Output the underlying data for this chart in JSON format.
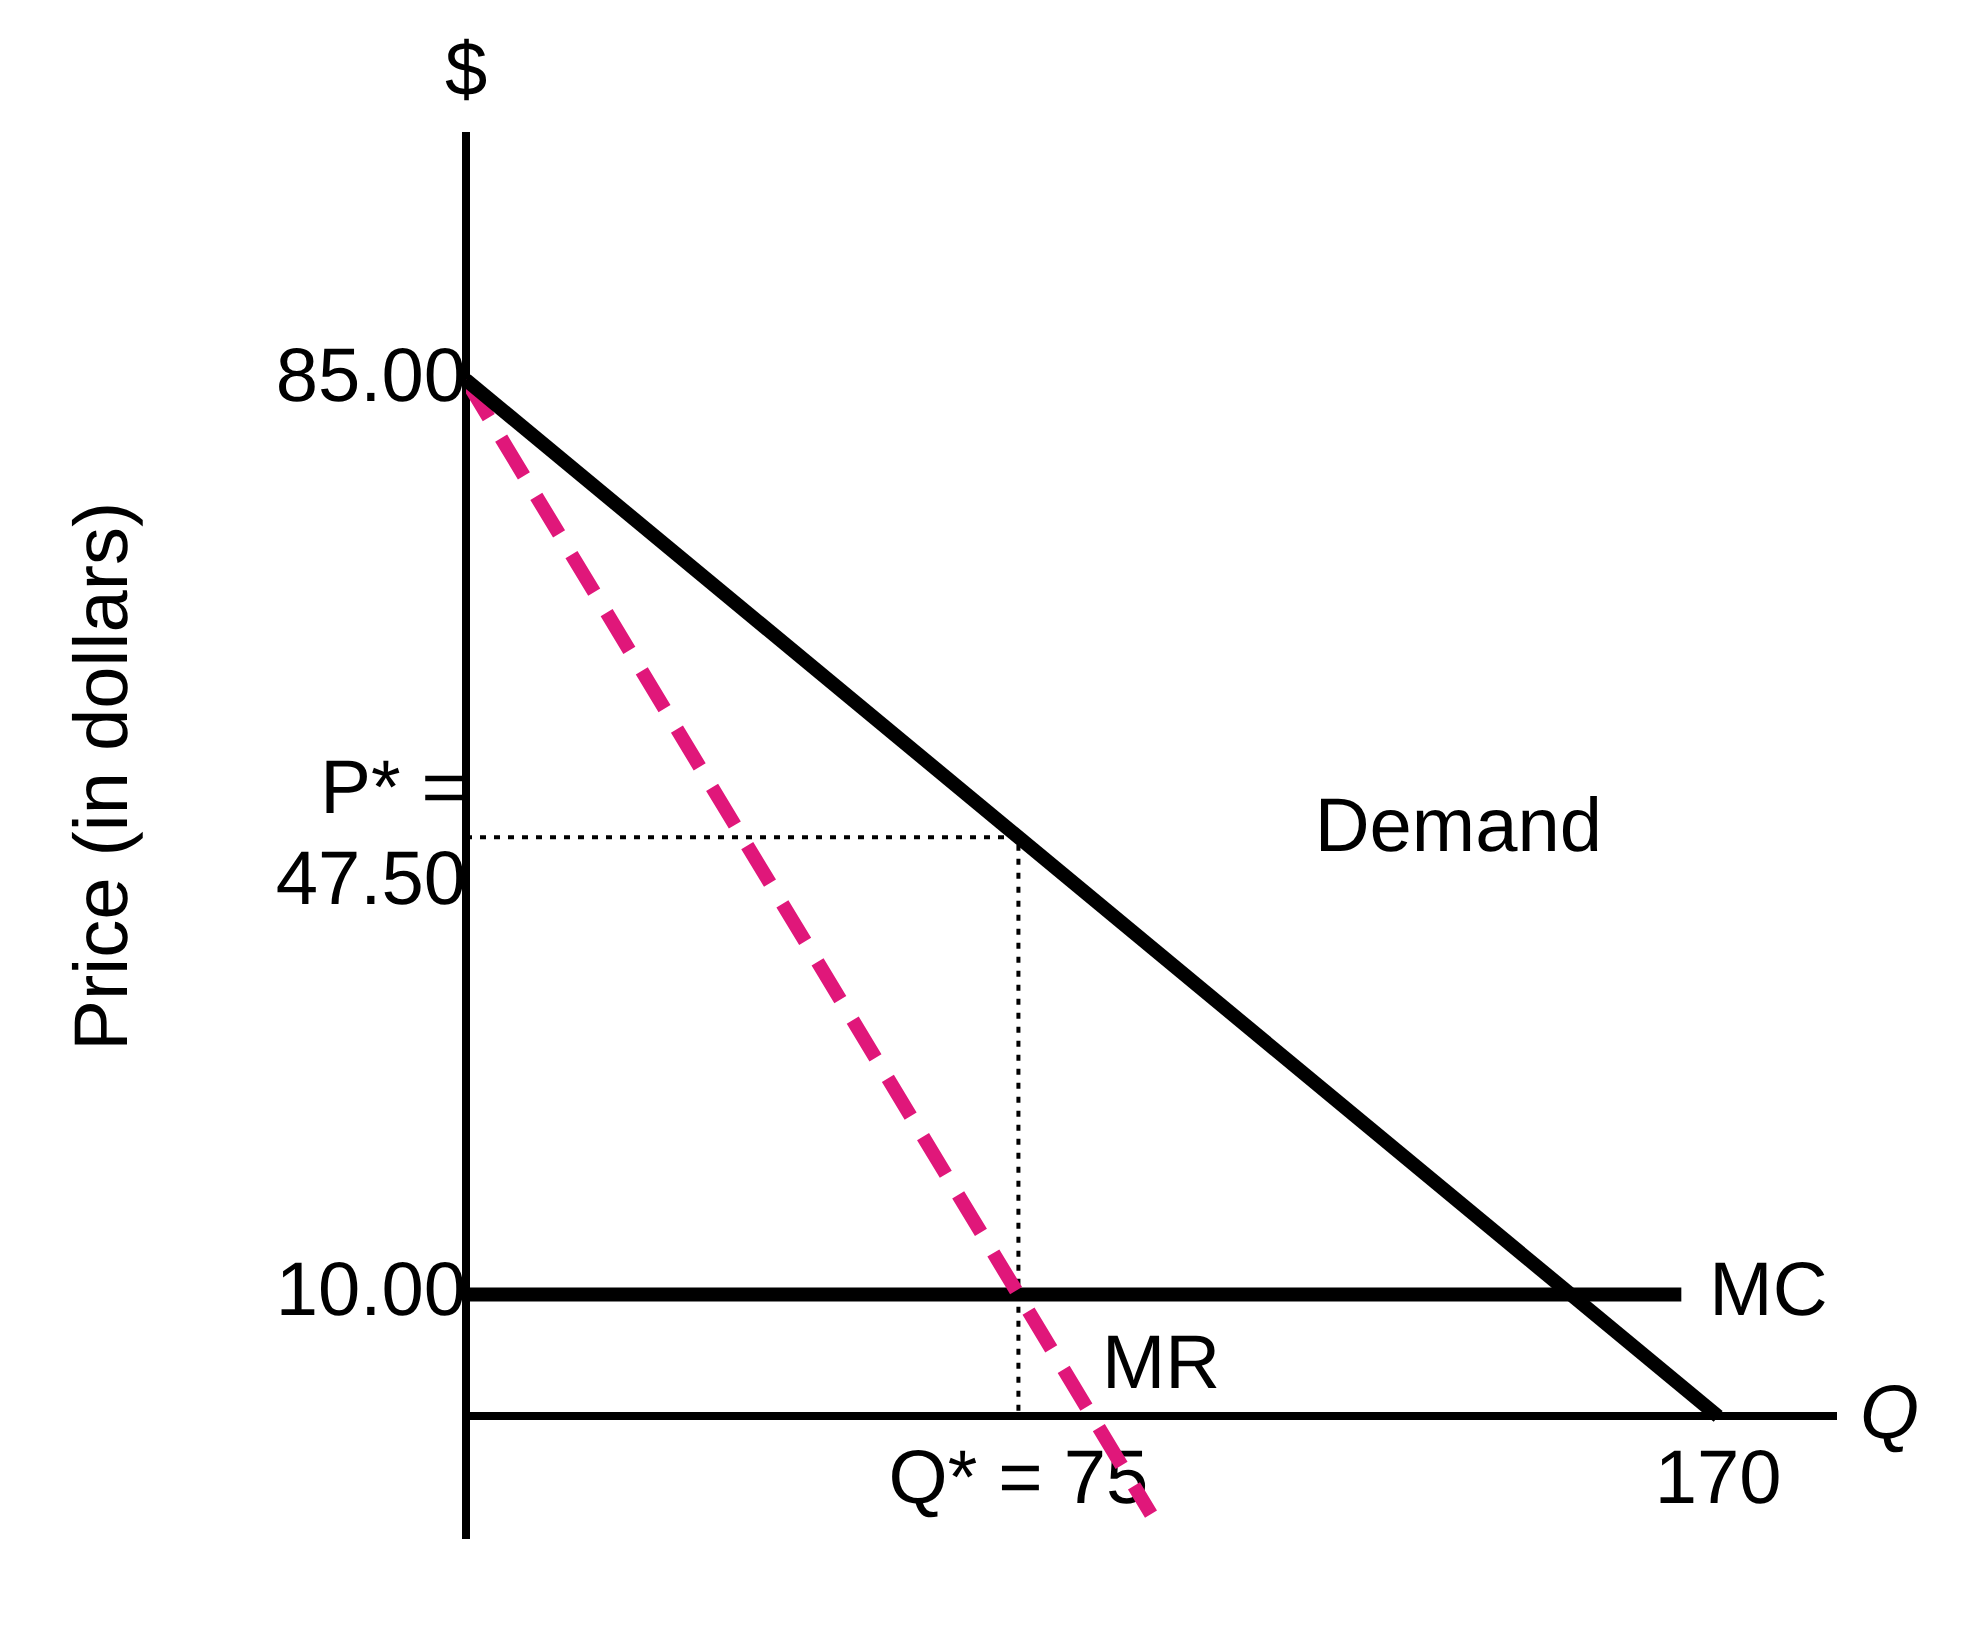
{
  "chart_data": {
    "type": "line",
    "ylabel": "Price (in dollars)",
    "xlabel": "Q",
    "annotations": [
      "$"
    ],
    "xlim": [
      0,
      186
    ],
    "ylim": [
      -10,
      105
    ],
    "xticks": [
      {
        "value": 75,
        "label": "Q* = 75"
      },
      170
    ],
    "yticks": [
      {
        "value": 10,
        "label": "10.00"
      },
      {
        "value": 47.5,
        "label": "P* = 47.50"
      },
      {
        "value": 85,
        "label": "85.00"
      }
    ],
    "grid": false,
    "legend": false,
    "marker": "none",
    "series": [
      {
        "name": "Demand",
        "color": "#000000",
        "x": [
          0,
          170
        ],
        "values": [
          85,
          0
        ],
        "line_style": "solid"
      },
      {
        "name": "MR",
        "color": "#e0177a",
        "x": [
          0,
          93
        ],
        "values": [
          85,
          -8
        ],
        "line_style": "dashed"
      },
      {
        "name": "MC",
        "color": "#000000",
        "x": [
          0,
          165
        ],
        "values": [
          10,
          10
        ],
        "line_style": "solid"
      },
      {
        "color": "#000000",
        "x": [
          0,
          75,
          75
        ],
        "values": [
          47.5,
          47.5,
          0
        ],
        "line_style": "dotted"
      }
    ]
  }
}
